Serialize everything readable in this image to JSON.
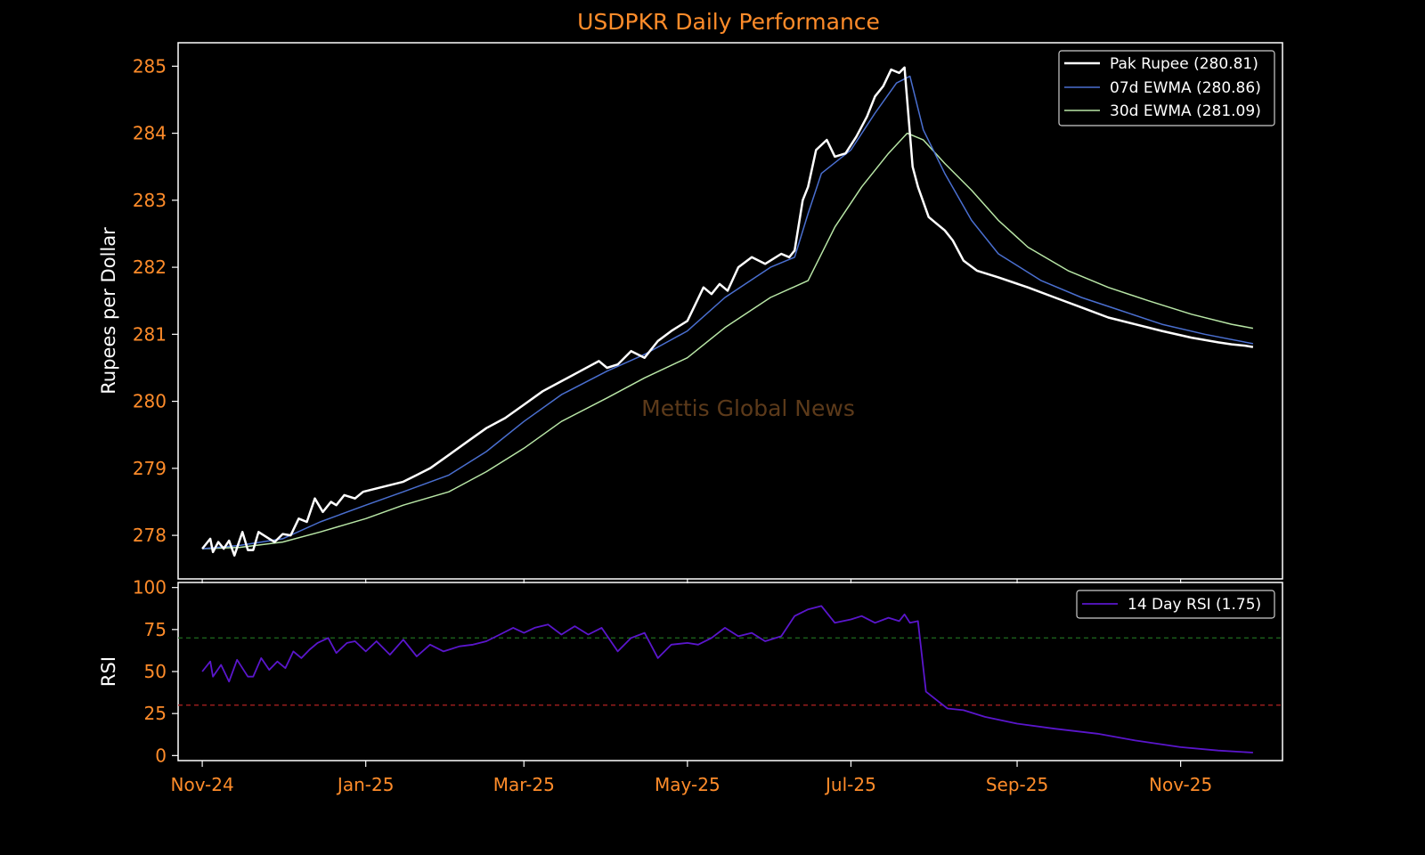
{
  "chart_data": [
    {
      "panel": "price",
      "type": "line",
      "title": "USDPKR Daily Performance",
      "ylabel": "Rupees per Dollar",
      "watermark": "Mettis Global News",
      "ylim": [
        277.35,
        285.35
      ],
      "yticks": [
        278,
        279,
        280,
        281,
        282,
        283,
        284,
        285
      ],
      "xlim": [
        "2024-10-23",
        "2025-12-09"
      ],
      "grid": false,
      "legend_placement": "top-right",
      "colors": {
        "background": "#000000",
        "title": "#ff8c2a",
        "ticks": "#ff8c2a",
        "frame": "#ffffff"
      },
      "series": [
        {
          "name": "Pak Rupee (280.81)",
          "color": "#ffffff",
          "x": [
            "2024-11-01",
            "2024-11-04",
            "2024-11-05",
            "2024-11-07",
            "2024-11-09",
            "2024-11-11",
            "2024-11-13",
            "2024-11-16",
            "2024-11-18",
            "2024-11-20",
            "2024-11-22",
            "2024-11-26",
            "2024-11-28",
            "2024-12-01",
            "2024-12-04",
            "2024-12-07",
            "2024-12-10",
            "2024-12-13",
            "2024-12-16",
            "2024-12-19",
            "2024-12-21",
            "2024-12-24",
            "2024-12-28",
            "2024-12-31",
            "2025-01-05",
            "2025-01-10",
            "2025-01-15",
            "2025-01-20",
            "2025-01-25",
            "2025-02-01",
            "2025-02-08",
            "2025-02-15",
            "2025-02-22",
            "2025-03-01",
            "2025-03-08",
            "2025-03-15",
            "2025-03-22",
            "2025-03-29",
            "2025-04-01",
            "2025-04-05",
            "2025-04-10",
            "2025-04-15",
            "2025-04-20",
            "2025-04-25",
            "2025-05-01",
            "2025-05-07",
            "2025-05-10",
            "2025-05-13",
            "2025-05-16",
            "2025-05-20",
            "2025-05-25",
            "2025-05-30",
            "2025-06-05",
            "2025-06-08",
            "2025-06-10",
            "2025-06-13",
            "2025-06-15",
            "2025-06-18",
            "2025-06-22",
            "2025-06-25",
            "2025-06-29",
            "2025-07-03",
            "2025-07-07",
            "2025-07-10",
            "2025-07-13",
            "2025-07-16",
            "2025-07-19",
            "2025-07-21",
            "2025-07-24",
            "2025-07-26",
            "2025-07-30",
            "2025-08-02",
            "2025-08-05",
            "2025-08-08",
            "2025-08-12",
            "2025-08-17",
            "2025-08-25",
            "2025-09-05",
            "2025-09-15",
            "2025-09-25",
            "2025-10-05",
            "2025-10-15",
            "2025-10-25",
            "2025-11-05",
            "2025-11-15",
            "2025-11-20",
            "2025-11-25",
            "2025-11-28"
          ],
          "values": [
            277.8,
            277.95,
            277.75,
            277.9,
            277.8,
            277.92,
            277.7,
            278.05,
            277.78,
            277.78,
            278.05,
            277.95,
            277.9,
            278.02,
            278.0,
            278.25,
            278.2,
            278.55,
            278.35,
            278.5,
            278.45,
            278.6,
            278.55,
            278.65,
            278.7,
            278.75,
            278.8,
            278.9,
            279.0,
            279.2,
            279.4,
            279.6,
            279.75,
            279.95,
            280.15,
            280.3,
            280.45,
            280.6,
            280.5,
            280.55,
            280.75,
            280.65,
            280.9,
            281.05,
            281.2,
            281.7,
            281.6,
            281.75,
            281.65,
            282.0,
            282.15,
            282.05,
            282.2,
            282.15,
            282.25,
            283.0,
            283.2,
            283.75,
            283.9,
            283.65,
            283.7,
            283.95,
            284.25,
            284.55,
            284.7,
            284.95,
            284.9,
            284.98,
            283.5,
            283.2,
            282.75,
            282.65,
            282.55,
            282.4,
            282.1,
            281.95,
            281.85,
            281.7,
            281.55,
            281.4,
            281.25,
            281.15,
            281.05,
            280.95,
            280.88,
            280.85,
            280.83,
            280.81
          ]
        },
        {
          "name": "07d EWMA (280.86)",
          "color": "#4a6fd0",
          "x": [
            "2024-11-01",
            "2024-11-15",
            "2024-12-01",
            "2024-12-15",
            "2025-01-01",
            "2025-01-15",
            "2025-02-01",
            "2025-02-15",
            "2025-03-01",
            "2025-03-15",
            "2025-04-01",
            "2025-04-15",
            "2025-05-01",
            "2025-05-15",
            "2025-06-01",
            "2025-06-10",
            "2025-06-15",
            "2025-06-20",
            "2025-07-01",
            "2025-07-10",
            "2025-07-18",
            "2025-07-23",
            "2025-07-28",
            "2025-08-05",
            "2025-08-15",
            "2025-08-25",
            "2025-09-10",
            "2025-09-25",
            "2025-10-10",
            "2025-10-25",
            "2025-11-10",
            "2025-11-28"
          ],
          "values": [
            277.8,
            277.85,
            277.95,
            278.2,
            278.45,
            278.65,
            278.9,
            279.25,
            279.7,
            280.1,
            280.45,
            280.7,
            281.05,
            281.55,
            282.0,
            282.15,
            282.8,
            283.4,
            283.75,
            284.3,
            284.75,
            284.85,
            284.05,
            283.4,
            282.7,
            282.2,
            281.8,
            281.55,
            281.35,
            281.15,
            281.0,
            280.86
          ]
        },
        {
          "name": "30d EWMA (281.09)",
          "color": "#b8e6a6",
          "x": [
            "2024-11-01",
            "2024-11-15",
            "2024-12-01",
            "2024-12-15",
            "2025-01-01",
            "2025-01-15",
            "2025-02-01",
            "2025-02-15",
            "2025-03-01",
            "2025-03-15",
            "2025-04-01",
            "2025-04-15",
            "2025-05-01",
            "2025-05-15",
            "2025-06-01",
            "2025-06-15",
            "2025-06-25",
            "2025-07-05",
            "2025-07-15",
            "2025-07-22",
            "2025-07-28",
            "2025-08-05",
            "2025-08-15",
            "2025-08-25",
            "2025-09-05",
            "2025-09-20",
            "2025-10-05",
            "2025-10-20",
            "2025-11-05",
            "2025-11-20",
            "2025-11-28"
          ],
          "values": [
            277.8,
            277.82,
            277.9,
            278.05,
            278.25,
            278.45,
            278.65,
            278.95,
            279.3,
            279.7,
            280.05,
            280.35,
            280.65,
            281.1,
            281.55,
            281.8,
            282.6,
            283.2,
            283.7,
            284.0,
            283.9,
            283.55,
            283.15,
            282.7,
            282.3,
            281.95,
            281.7,
            281.5,
            281.3,
            281.15,
            281.09
          ]
        }
      ]
    },
    {
      "panel": "rsi",
      "type": "line",
      "ylabel": "RSI",
      "ylim": [
        -3,
        103
      ],
      "yticks": [
        0,
        25,
        50,
        75,
        100
      ],
      "xlim": [
        "2024-10-23",
        "2025-12-09"
      ],
      "xticks": [
        "2024-11-01",
        "2025-01-01",
        "2025-03-01",
        "2025-05-01",
        "2025-07-01",
        "2025-09-01",
        "2025-11-01"
      ],
      "xticklabels": [
        "Nov-24",
        "Jan-25",
        "Mar-25",
        "May-25",
        "Jul-25",
        "Sep-25",
        "Nov-25"
      ],
      "reference_lines": [
        {
          "value": 70,
          "color": "#1f6b1f"
        },
        {
          "value": 30,
          "color": "#b22222"
        }
      ],
      "legend_placement": "top-right",
      "series": [
        {
          "name": "14 Day RSI (1.75)",
          "color": "#5a16cc",
          "x": [
            "2024-11-01",
            "2024-11-04",
            "2024-11-05",
            "2024-11-08",
            "2024-11-11",
            "2024-11-14",
            "2024-11-18",
            "2024-11-20",
            "2024-11-23",
            "2024-11-26",
            "2024-11-29",
            "2024-12-02",
            "2024-12-05",
            "2024-12-08",
            "2024-12-11",
            "2024-12-14",
            "2024-12-18",
            "2024-12-21",
            "2024-12-25",
            "2024-12-28",
            "2025-01-01",
            "2025-01-05",
            "2025-01-10",
            "2025-01-15",
            "2025-01-20",
            "2025-01-25",
            "2025-01-30",
            "2025-02-05",
            "2025-02-10",
            "2025-02-15",
            "2025-02-20",
            "2025-02-25",
            "2025-03-01",
            "2025-03-05",
            "2025-03-10",
            "2025-03-15",
            "2025-03-20",
            "2025-03-25",
            "2025-03-30",
            "2025-04-05",
            "2025-04-10",
            "2025-04-15",
            "2025-04-20",
            "2025-04-25",
            "2025-05-01",
            "2025-05-05",
            "2025-05-10",
            "2025-05-15",
            "2025-05-20",
            "2025-05-25",
            "2025-05-30",
            "2025-06-05",
            "2025-06-10",
            "2025-06-15",
            "2025-06-20",
            "2025-06-25",
            "2025-07-01",
            "2025-07-05",
            "2025-07-10",
            "2025-07-15",
            "2025-07-19",
            "2025-07-21",
            "2025-07-23",
            "2025-07-26",
            "2025-07-29",
            "2025-08-02",
            "2025-08-06",
            "2025-08-12",
            "2025-08-20",
            "2025-09-01",
            "2025-09-15",
            "2025-10-01",
            "2025-10-15",
            "2025-11-01",
            "2025-11-15",
            "2025-11-28"
          ],
          "values": [
            50,
            56,
            47,
            54,
            44,
            57,
            47,
            47,
            58,
            51,
            56,
            52,
            62,
            58,
            63,
            67,
            70,
            61,
            67,
            68,
            62,
            68,
            60,
            69,
            59,
            66,
            62,
            65,
            66,
            68,
            72,
            76,
            73,
            76,
            78,
            72,
            77,
            72,
            76,
            62,
            70,
            73,
            58,
            66,
            67,
            66,
            70,
            76,
            71,
            73,
            68,
            71,
            83,
            87,
            89,
            79,
            81,
            83,
            79,
            82,
            80,
            84,
            79,
            80,
            38,
            33,
            28,
            27,
            23,
            19,
            16,
            13,
            9,
            5,
            3,
            1.75
          ]
        }
      ]
    }
  ]
}
